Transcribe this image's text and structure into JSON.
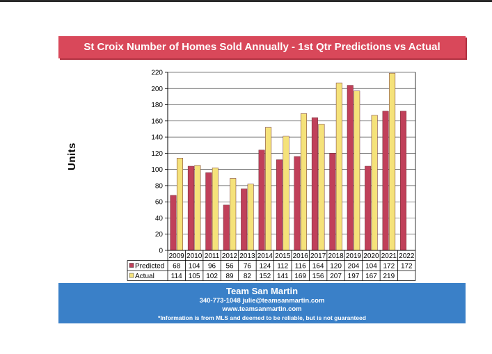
{
  "header": {
    "title": "St Croix Number of Homes Sold Annually  - 1st Qtr Predictions vs Actual"
  },
  "footer": {
    "name": "Team San Martin",
    "contact": "340-773-1048    julie@teamsanmartin.com",
    "website": "www.teamsanmartin.com",
    "disclaimer": "*Information is from MLS and deemed to be reliable, but is not guaranteed"
  },
  "colors": {
    "title_banner": "#d9485a",
    "footer_banner": "#3a80c8",
    "predicted": "#c0405a",
    "actual": "#f5e27a"
  },
  "chart_data": {
    "type": "bar",
    "ylabel": "Units",
    "ylim": [
      0,
      220
    ],
    "yticks": [
      0,
      20,
      40,
      60,
      80,
      100,
      120,
      140,
      160,
      180,
      200,
      220
    ],
    "grid": true,
    "legend": "data-table",
    "categories": [
      "2009",
      "2010",
      "2011",
      "2012",
      "2013",
      "2014",
      "2015",
      "2016",
      "2017",
      "2018",
      "2019",
      "2020",
      "2021",
      "2022"
    ],
    "series": [
      {
        "name": "Predicted",
        "values": [
          68,
          104,
          96,
          56,
          76,
          124,
          112,
          116,
          164,
          120,
          204,
          104,
          172,
          172
        ]
      },
      {
        "name": "Actual",
        "values": [
          114,
          105,
          102,
          89,
          82,
          152,
          141,
          169,
          156,
          207,
          197,
          167,
          219,
          null
        ]
      }
    ]
  }
}
